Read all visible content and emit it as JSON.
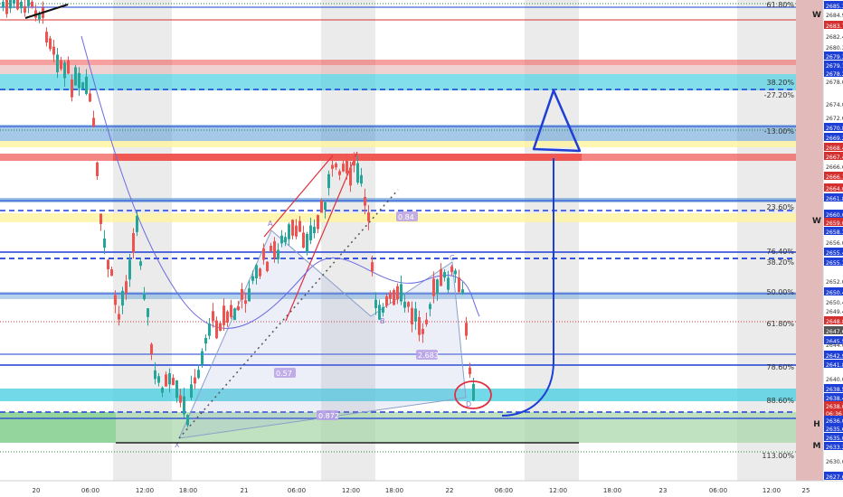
{
  "chart_data": {
    "type": "candlestick",
    "x_tick_labels": [
      "20",
      "06:00",
      "12:00",
      "18:00",
      "21",
      "06:00",
      "12:00",
      "18:00",
      "22",
      "06:00",
      "12:00",
      "18:00",
      "23",
      "06:00",
      "12:00",
      "25"
    ],
    "price_axis_labels": [
      "2685.3",
      "2684.9",
      "2683.7",
      "2682.4",
      "2680.3",
      "2679.3",
      "2679.1",
      "2678.2",
      "2678.0",
      "2674.0",
      "2672.0",
      "2670.8",
      "2669.2",
      "2668.4",
      "2667.4",
      "2666.6",
      "2666.1",
      "2664.0",
      "2661.8",
      "2660.0",
      "2659.0",
      "2658.3",
      "2656.0",
      "2655.4",
      "2655.3",
      "2652.0",
      "2650.4",
      "2650.4",
      "2649.4",
      "2648.8",
      "2647.6",
      "2645.5",
      "2644.0",
      "2642.9",
      "2641.8",
      "2640.0",
      "2638.5",
      "2638.4",
      "2638.0",
      "06:36",
      "2636.0",
      "2635.6",
      "2635.0",
      "2633.2",
      "2630.0",
      "2627.6"
    ],
    "axis_markers": [
      "W",
      "H",
      "M",
      "D"
    ],
    "fib_labels": [
      "61.80%",
      "38.20%",
      "-27.20%",
      "-13.00%",
      "23.60%",
      "76.40%",
      "38.20%",
      "50.00%",
      "61.80%",
      "78.60%",
      "88.60%",
      "113.00%"
    ],
    "pattern_labels": [
      "0.84",
      "0.57",
      "2.683",
      "0.872",
      "X",
      "A",
      "B",
      "C",
      "D"
    ],
    "current_price": "06:36",
    "colors": {
      "up": "#26a69a",
      "down": "#ef5350",
      "blue_zone": "#5b9bd5",
      "red_zone": "#ef5350",
      "cyan_zone": "#4dd0e1",
      "yellow_zone": "#fff59d",
      "green_zone": "#a5d6a7",
      "annotation": "#1e3fd6"
    }
  }
}
